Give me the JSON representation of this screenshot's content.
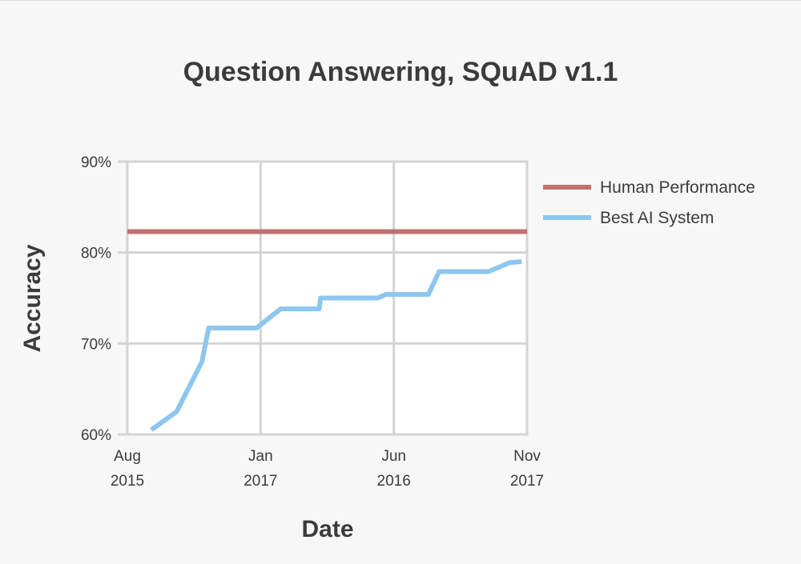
{
  "chart_data": {
    "type": "line",
    "title": "Question Answering, SQuAD v1.1",
    "xlabel": "Date",
    "ylabel": "Accuracy",
    "ylim": [
      60,
      90
    ],
    "xlim": [
      0,
      30
    ],
    "grid": true,
    "legend_position": "right",
    "y_ticks": [
      {
        "value": 60,
        "label": "60%"
      },
      {
        "value": 70,
        "label": "70%"
      },
      {
        "value": 80,
        "label": "80%"
      },
      {
        "value": 90,
        "label": "90%"
      }
    ],
    "x_ticks": [
      {
        "value": 0,
        "line1": "Aug",
        "line2": "2015"
      },
      {
        "value": 10,
        "line1": "Jan",
        "line2": "2017"
      },
      {
        "value": 20,
        "line1": "Jun",
        "line2": "2016"
      },
      {
        "value": 30,
        "line1": "Nov",
        "line2": "2017"
      }
    ],
    "series": [
      {
        "name": "Human Performance",
        "color": "#c0706f",
        "x": [
          0,
          30
        ],
        "y": [
          82.3,
          82.3
        ]
      },
      {
        "name": "Best AI System",
        "color": "#8dc6ee",
        "x": [
          1.8,
          3.7,
          5.6,
          6.1,
          9.7,
          11.5,
          14.4,
          14.5,
          18.8,
          19.4,
          22.6,
          23.4,
          27.1,
          28.7,
          29.6
        ],
        "y": [
          60.5,
          62.5,
          68.0,
          71.7,
          71.7,
          73.8,
          73.8,
          75.0,
          75.0,
          75.4,
          75.4,
          77.9,
          77.9,
          78.9,
          79.0
        ]
      }
    ]
  }
}
